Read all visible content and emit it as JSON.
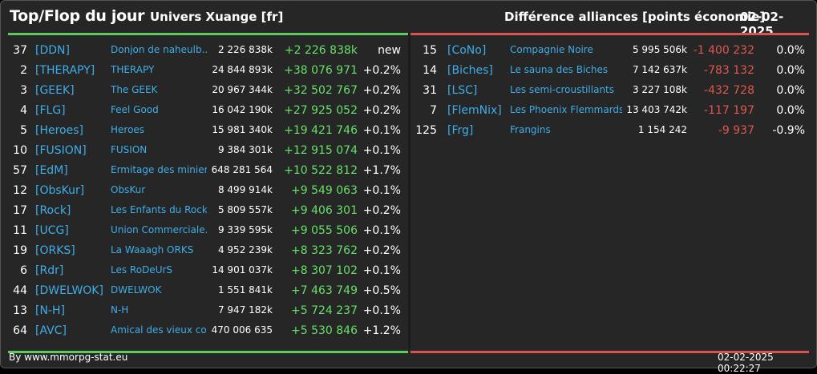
{
  "header": {
    "title": "Top/Flop du jour",
    "universe": "Univers Xuange [fr]",
    "category": "Différence alliances [points économie]",
    "date": "02-02-2025"
  },
  "top": [
    {
      "rank": "37",
      "tag": "[DDN]",
      "name": "Donjon de naheulb...",
      "points": "2 226 838k",
      "delta": "+2 226 838k",
      "pct": "new"
    },
    {
      "rank": "2",
      "tag": "[THERAPY]",
      "name": "THERAPY",
      "points": "24 844 893k",
      "delta": "+38 076 971",
      "pct": "+0.2%"
    },
    {
      "rank": "3",
      "tag": "[GEEK]",
      "name": "The GEEK",
      "points": "20 967 344k",
      "delta": "+32 502 767",
      "pct": "+0.2%"
    },
    {
      "rank": "4",
      "tag": "[FLG]",
      "name": "Feel Good",
      "points": "16 042 190k",
      "delta": "+27 925 052",
      "pct": "+0.2%"
    },
    {
      "rank": "5",
      "tag": "[Heroes]",
      "name": "Heroes",
      "points": "15 981 340k",
      "delta": "+19 421 746",
      "pct": "+0.1%"
    },
    {
      "rank": "10",
      "tag": "[FUSION]",
      "name": "FUSION",
      "points": "9 384 301k",
      "delta": "+12 915 074",
      "pct": "+0.1%"
    },
    {
      "rank": "57",
      "tag": "[EdM]",
      "name": "Ermitage des miniers",
      "points": "648 281 564",
      "delta": "+10 522 812",
      "pct": "+1.7%"
    },
    {
      "rank": "12",
      "tag": "[ObsKur]",
      "name": "ObsKur",
      "points": "8 499 914k",
      "delta": "+9 549 063",
      "pct": "+0.1%"
    },
    {
      "rank": "17",
      "tag": "[Rock]",
      "name": "Les Enfants du Rock",
      "points": "5 809 557k",
      "delta": "+9 406 301",
      "pct": "+0.2%"
    },
    {
      "rank": "11",
      "tag": "[UCG]",
      "name": "Union Commerciale...",
      "points": "9 339 595k",
      "delta": "+9 055 506",
      "pct": "+0.1%"
    },
    {
      "rank": "19",
      "tag": "[ORKS]",
      "name": "La Waaagh ORKS",
      "points": "4 952 239k",
      "delta": "+8 323 762",
      "pct": "+0.2%"
    },
    {
      "rank": "6",
      "tag": "[Rdr]",
      "name": "Les RoDeUrS",
      "points": "14 901 037k",
      "delta": "+8 307 102",
      "pct": "+0.1%"
    },
    {
      "rank": "44",
      "tag": "[DWELWOK]",
      "name": "DWELWOK",
      "points": "1 551 841k",
      "delta": "+7 463 749",
      "pct": "+0.5%"
    },
    {
      "rank": "13",
      "tag": "[N-H]",
      "name": "N-H",
      "points": "7 947 182k",
      "delta": "+5 724 237",
      "pct": "+0.1%"
    },
    {
      "rank": "64",
      "tag": "[AVC]",
      "name": "Amical des vieux con",
      "points": "470 006 635",
      "delta": "+5 530 846",
      "pct": "+1.2%"
    }
  ],
  "flop": [
    {
      "rank": "15",
      "tag": "[CoNo]",
      "name": "Compagnie Noire",
      "points": "5 995 506k",
      "delta": "-1 400 232",
      "pct": "0.0%"
    },
    {
      "rank": "14",
      "tag": "[Biches]",
      "name": "Le sauna des Biches",
      "points": "7 142 637k",
      "delta": "-783 132",
      "pct": "0.0%"
    },
    {
      "rank": "31",
      "tag": "[LSC]",
      "name": "Les semi-croustillants",
      "points": "3 227 108k",
      "delta": "-432 728",
      "pct": "0.0%"
    },
    {
      "rank": "7",
      "tag": "[FlemNix]",
      "name": "Les Phoenix Flemmards",
      "points": "13 403 742k",
      "delta": "-117 197",
      "pct": "0.0%"
    },
    {
      "rank": "125",
      "tag": "[Frg]",
      "name": "Frangins",
      "points": "1 154 242",
      "delta": "-9 937",
      "pct": "-0.9%"
    }
  ],
  "footer": {
    "source": "By www.mmorpg-stat.eu",
    "timestamp": "02-02-2025 00:22:27"
  },
  "colors": {
    "positive": "#66e066",
    "negative": "#e0564f",
    "link": "#3daee9",
    "top_border": "#5ec95e",
    "flop_border": "#d9534f"
  }
}
